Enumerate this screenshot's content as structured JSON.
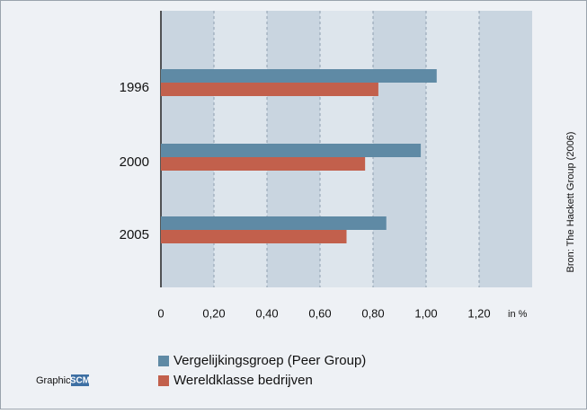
{
  "chart_data": {
    "type": "barh",
    "categories": [
      "1996",
      "2000",
      "2005"
    ],
    "series": [
      {
        "name": "Vergelijkingsgroep (Peer Group)",
        "color": "#5f8aa5",
        "values": [
          1.04,
          0.98,
          0.85
        ]
      },
      {
        "name": "Wereldklasse bedrijven",
        "color": "#c2604c",
        "values": [
          0.82,
          0.77,
          0.7
        ]
      }
    ],
    "xlim": [
      0,
      1.4
    ],
    "xticks": [
      0,
      {
        "value": 0.2,
        "label": "0,20"
      },
      {
        "value": 0.4,
        "label": "0,40"
      },
      {
        "value": 0.6,
        "label": "0,60"
      },
      {
        "value": 0.8,
        "label": "0,80"
      },
      {
        "value": 1.0,
        "label": "1,00"
      },
      {
        "value": 1.2,
        "label": "1,20"
      }
    ],
    "x_unit": "in %",
    "source": "Bron: The Hackett Group (2006)",
    "credit": "Graphic:",
    "credit_logo": "SCM"
  }
}
